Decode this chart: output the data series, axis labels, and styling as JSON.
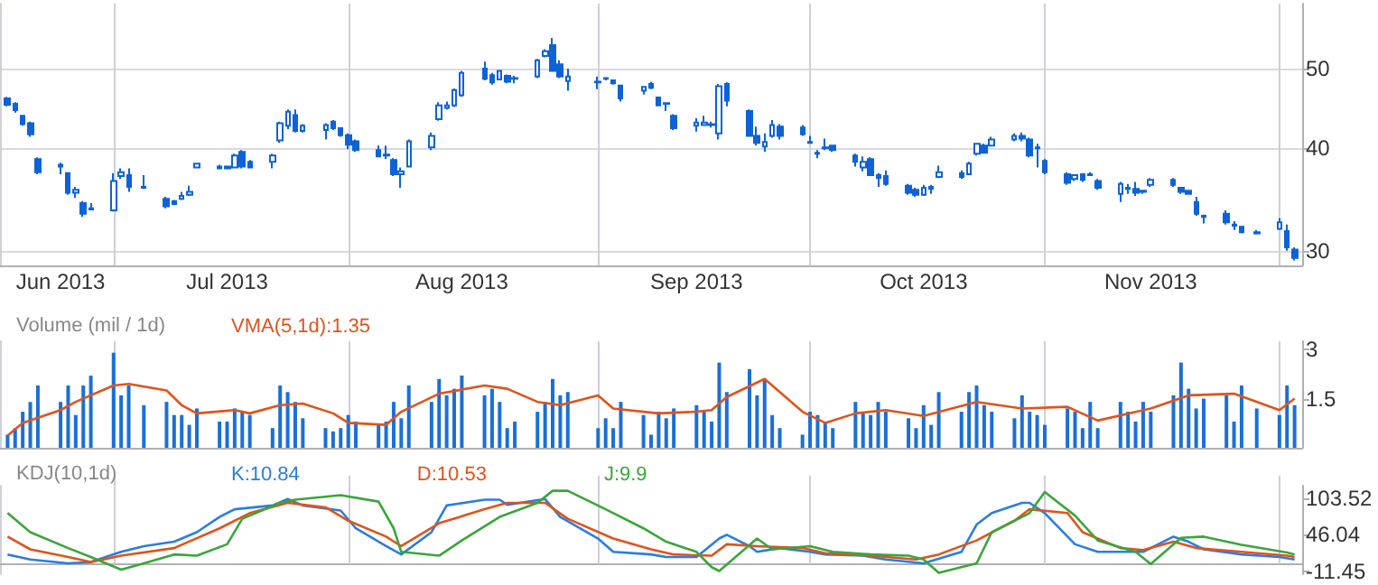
{
  "chart_data": [
    {
      "type": "candlestick",
      "color": "#0d63d6",
      "log": "y",
      "grid": true,
      "ylim": [
        28.8,
        60
      ],
      "yticks": [
        30,
        40,
        50
      ],
      "xlim": [
        "2013-06-16",
        "2013-12-05"
      ],
      "xticks": [
        {
          "value": "2013-06-24",
          "label": "Jun 2013"
        },
        {
          "value": "2013-07-01",
          "label": null
        },
        {
          "value": "2013-07-16",
          "label": "Jul 2013"
        },
        {
          "value": "2013-08-01",
          "label": null
        },
        {
          "value": "2013-08-16",
          "label": "Aug 2013"
        },
        {
          "value": "2013-09-03",
          "label": null
        },
        {
          "value": "2013-09-16",
          "label": "Sep 2013"
        },
        {
          "value": "2013-10-01",
          "label": null
        },
        {
          "value": "2013-10-16",
          "label": "Oct 2013"
        },
        {
          "value": "2013-11-01",
          "label": null
        },
        {
          "value": "2013-11-15",
          "label": "Nov 2013"
        },
        {
          "value": "2013-12-02",
          "label": null
        }
      ],
      "x": [
        "2013-06-17",
        "2013-06-18",
        "2013-06-19",
        "2013-06-20",
        "2013-06-21",
        "2013-06-24",
        "2013-06-25",
        "2013-06-26",
        "2013-06-27",
        "2013-06-28",
        "2013-07-01",
        "2013-07-02",
        "2013-07-03",
        "2013-07-05",
        "2013-07-08",
        "2013-07-09",
        "2013-07-10",
        "2013-07-11",
        "2013-07-12",
        "2013-07-15",
        "2013-07-16",
        "2013-07-17",
        "2013-07-18",
        "2013-07-19",
        "2013-07-22",
        "2013-07-23",
        "2013-07-24",
        "2013-07-25",
        "2013-07-26",
        "2013-07-29",
        "2013-07-30",
        "2013-07-31",
        "2013-08-01",
        "2013-08-02",
        "2013-08-05",
        "2013-08-06",
        "2013-08-07",
        "2013-08-08",
        "2013-08-09",
        "2013-08-12",
        "2013-08-13",
        "2013-08-14",
        "2013-08-15",
        "2013-08-16",
        "2013-08-19",
        "2013-08-20",
        "2013-08-21",
        "2013-08-22",
        "2013-08-23",
        "2013-08-26",
        "2013-08-27",
        "2013-08-28",
        "2013-08-29",
        "2013-08-30",
        "2013-09-03",
        "2013-09-04",
        "2013-09-05",
        "2013-09-06",
        "2013-09-09",
        "2013-09-10",
        "2013-09-11",
        "2013-09-12",
        "2013-09-13",
        "2013-09-16",
        "2013-09-17",
        "2013-09-18",
        "2013-09-19",
        "2013-09-20",
        "2013-09-23",
        "2013-09-24",
        "2013-09-25",
        "2013-09-26",
        "2013-09-27",
        "2013-09-30",
        "2013-10-01",
        "2013-10-02",
        "2013-10-03",
        "2013-10-04",
        "2013-10-07",
        "2013-10-08",
        "2013-10-09",
        "2013-10-10",
        "2013-10-11",
        "2013-10-14",
        "2013-10-15",
        "2013-10-16",
        "2013-10-17",
        "2013-10-18",
        "2013-10-21",
        "2013-10-22",
        "2013-10-23",
        "2013-10-24",
        "2013-10-25",
        "2013-10-28",
        "2013-10-29",
        "2013-10-30",
        "2013-10-31",
        "2013-11-01",
        "2013-11-04",
        "2013-11-05",
        "2013-11-06",
        "2013-11-07",
        "2013-11-08",
        "2013-11-11",
        "2013-11-12",
        "2013-11-13",
        "2013-11-14",
        "2013-11-15",
        "2013-11-18",
        "2013-11-19",
        "2013-11-20",
        "2013-11-21",
        "2013-11-22",
        "2013-11-25",
        "2013-11-26",
        "2013-11-27",
        "2013-11-29",
        "2013-12-02",
        "2013-12-03",
        "2013-12-04"
      ],
      "ohlc": [
        [
          46.0,
          46.2,
          45.0,
          45.2
        ],
        [
          45.3,
          45.5,
          44.2,
          44.5
        ],
        [
          43.8,
          43.9,
          42.6,
          42.8
        ],
        [
          42.9,
          43.1,
          41.3,
          41.6
        ],
        [
          38.8,
          39.0,
          37.2,
          37.4
        ],
        [
          38.2,
          38.4,
          37.2,
          38.0
        ],
        [
          37.3,
          37.4,
          35.1,
          35.3
        ],
        [
          35.3,
          35.9,
          34.8,
          35.6
        ],
        [
          34.3,
          34.5,
          33.0,
          33.3
        ],
        [
          33.7,
          34.3,
          33.6,
          33.8
        ],
        [
          33.6,
          37.3,
          33.5,
          36.5
        ],
        [
          37.0,
          37.8,
          36.7,
          37.4
        ],
        [
          37.1,
          37.8,
          35.4,
          35.9
        ],
        [
          35.9,
          37.1,
          35.7,
          35.8
        ],
        [
          34.7,
          34.9,
          33.8,
          34.0
        ],
        [
          34.5,
          34.6,
          34.1,
          34.2
        ],
        [
          34.7,
          35.4,
          34.6,
          35.0
        ],
        [
          35.1,
          36.0,
          35.0,
          35.4
        ],
        [
          37.9,
          38.4,
          37.8,
          38.3
        ],
        [
          37.8,
          38.2,
          37.7,
          38.0
        ],
        [
          38.0,
          38.1,
          37.7,
          37.8
        ],
        [
          37.9,
          39.4,
          37.8,
          39.2
        ],
        [
          39.6,
          39.8,
          37.8,
          38.0
        ],
        [
          38.5,
          38.7,
          37.8,
          37.9
        ],
        [
          38.5,
          39.4,
          37.8,
          39.2
        ],
        [
          40.9,
          43.1,
          40.6,
          42.9
        ],
        [
          42.6,
          44.6,
          42.2,
          44.3
        ],
        [
          43.9,
          44.6,
          41.8,
          42.0
        ],
        [
          42.0,
          42.8,
          41.8,
          42.6
        ],
        [
          42.1,
          42.9,
          41.0,
          42.7
        ],
        [
          43.1,
          43.3,
          42.1,
          42.3
        ],
        [
          42.3,
          42.4,
          41.3,
          41.5
        ],
        [
          41.5,
          41.7,
          39.9,
          40.4
        ],
        [
          40.8,
          41.0,
          39.6,
          39.8
        ],
        [
          39.8,
          40.3,
          39.0,
          39.1
        ],
        [
          39.3,
          40.3,
          38.8,
          39.2
        ],
        [
          38.7,
          38.9,
          37.0,
          37.2
        ],
        [
          37.2,
          37.9,
          35.8,
          37.5
        ],
        [
          38.0,
          41.0,
          37.9,
          40.8
        ],
        [
          40.1,
          41.8,
          39.8,
          41.4
        ],
        [
          43.4,
          45.5,
          43.2,
          45.1
        ],
        [
          44.8,
          45.6,
          44.6,
          45.1
        ],
        [
          45.1,
          47.3,
          44.9,
          47.1
        ],
        [
          46.4,
          49.7,
          46.2,
          49.4
        ],
        [
          50.0,
          51.0,
          48.4,
          48.6
        ],
        [
          49.1,
          49.4,
          47.8,
          48.1
        ],
        [
          48.5,
          49.8,
          48.4,
          49.7
        ],
        [
          49.0,
          49.2,
          48.0,
          48.2
        ],
        [
          48.7,
          49.0,
          48.0,
          48.6
        ],
        [
          48.9,
          51.4,
          48.7,
          51.2
        ],
        [
          51.8,
          52.8,
          51.6,
          52.5
        ],
        [
          53.4,
          54.5,
          49.6,
          49.7
        ],
        [
          50.6,
          51.2,
          48.7,
          48.9
        ],
        [
          48.3,
          50.0,
          47.0,
          48.9
        ],
        [
          48.2,
          48.9,
          47.2,
          48.1
        ],
        [
          48.7,
          48.8,
          48.4,
          48.6
        ],
        [
          48.4,
          48.5,
          47.8,
          48.0
        ],
        [
          47.7,
          47.8,
          45.6,
          46.0
        ],
        [
          47.0,
          47.6,
          46.5,
          47.5
        ],
        [
          47.9,
          48.2,
          47.2,
          47.4
        ],
        [
          46.1,
          46.2,
          45.0,
          45.1
        ],
        [
          45.4,
          45.5,
          44.4,
          45.3
        ],
        [
          43.8,
          44.0,
          42.1,
          42.3
        ],
        [
          42.6,
          43.5,
          41.9,
          43.0
        ],
        [
          42.7,
          43.8,
          42.6,
          43.0
        ],
        [
          42.8,
          43.1,
          42.4,
          42.7
        ],
        [
          41.7,
          47.9,
          41.0,
          47.6
        ],
        [
          47.9,
          48.1,
          45.0,
          45.7
        ],
        [
          44.4,
          44.6,
          41.3,
          41.4
        ],
        [
          41.4,
          42.5,
          40.3,
          40.6
        ],
        [
          40.2,
          41.7,
          39.6,
          40.7
        ],
        [
          41.4,
          43.3,
          41.2,
          42.7
        ],
        [
          42.5,
          42.8,
          41.0,
          41.4
        ],
        [
          42.4,
          42.7,
          41.4,
          41.6
        ],
        [
          40.7,
          41.4,
          40.5,
          40.6
        ],
        [
          39.5,
          39.8,
          38.9,
          39.4
        ],
        [
          40.0,
          41.1,
          39.8,
          40.1
        ],
        [
          40.3,
          40.4,
          39.6,
          39.8
        ],
        [
          39.2,
          39.4,
          38.0,
          38.5
        ],
        [
          37.9,
          39.1,
          37.5,
          38.5
        ],
        [
          38.8,
          39.0,
          37.0,
          37.1
        ],
        [
          37.1,
          37.3,
          35.9,
          36.8
        ],
        [
          37.0,
          37.6,
          36.0,
          36.2
        ],
        [
          36.0,
          36.2,
          35.1,
          35.3
        ],
        [
          35.6,
          35.8,
          34.9,
          35.1
        ],
        [
          35.1,
          36.1,
          35.0,
          35.8
        ],
        [
          35.9,
          36.1,
          35.2,
          35.7
        ],
        [
          36.9,
          38.1,
          36.8,
          37.4
        ],
        [
          37.3,
          37.6,
          36.7,
          36.9
        ],
        [
          37.2,
          38.5,
          37.1,
          38.3
        ],
        [
          39.4,
          40.6,
          39.2,
          40.5
        ],
        [
          40.3,
          40.5,
          39.4,
          39.5
        ],
        [
          40.3,
          41.3,
          40.2,
          41.0
        ],
        [
          41.0,
          41.7,
          40.8,
          41.4
        ],
        [
          41.4,
          41.8,
          40.8,
          41.1
        ],
        [
          41.0,
          41.2,
          39.0,
          39.2
        ],
        [
          40.1,
          40.5,
          37.9,
          40.0
        ],
        [
          38.6,
          38.8,
          37.2,
          37.4
        ],
        [
          37.2,
          37.4,
          36.1,
          36.3
        ],
        [
          36.7,
          37.2,
          36.5,
          37.1
        ],
        [
          37.2,
          37.3,
          36.4,
          36.6
        ],
        [
          37.2,
          37.4,
          37.0,
          37.1
        ],
        [
          36.5,
          36.7,
          35.6,
          35.8
        ],
        [
          35.2,
          36.4,
          34.4,
          36.2
        ],
        [
          35.8,
          36.2,
          35.2,
          35.7
        ],
        [
          35.7,
          36.4,
          35.0,
          35.3
        ],
        [
          35.5,
          35.6,
          35.2,
          35.4
        ],
        [
          36.1,
          36.8,
          35.9,
          36.6
        ],
        [
          36.6,
          36.8,
          35.9,
          36.1
        ],
        [
          35.8,
          35.9,
          35.2,
          35.4
        ],
        [
          35.5,
          35.6,
          35.1,
          35.2
        ],
        [
          34.4,
          34.9,
          33.1,
          33.3
        ],
        [
          33.1,
          33.2,
          32.4,
          33.0
        ],
        [
          33.3,
          33.6,
          32.3,
          32.5
        ],
        [
          32.3,
          32.6,
          31.8,
          32.2
        ],
        [
          32.1,
          32.2,
          31.5,
          31.6
        ],
        [
          31.6,
          31.8,
          31.4,
          31.5
        ],
        [
          31.9,
          32.9,
          31.8,
          32.5
        ],
        [
          31.7,
          32.3,
          30.0,
          30.3
        ],
        [
          30.1,
          30.3,
          29.2,
          29.4
        ]
      ]
    },
    {
      "type": "bar",
      "title": "Volume (mil / 1d)",
      "legend": "top left",
      "marker": "none",
      "grid": "x",
      "tick_labels": "y",
      "ylim": [
        0,
        3.25
      ],
      "yticks": [
        1.5,
        3
      ],
      "xlim": [
        "2013-06-16",
        "2013-12-05"
      ],
      "xticks": [
        {
          "value": "2013-07-01",
          "label": null
        },
        {
          "value": "2013-08-01",
          "label": null
        },
        {
          "value": "2013-09-03",
          "label": null
        },
        {
          "value": "2013-10-01",
          "label": null
        },
        {
          "value": "2013-11-01",
          "label": null
        },
        {
          "value": "2013-12-02",
          "label": null
        }
      ],
      "x": [
        "2013-06-17",
        "2013-06-18",
        "2013-06-19",
        "2013-06-20",
        "2013-06-21",
        "2013-06-24",
        "2013-06-25",
        "2013-06-26",
        "2013-06-27",
        "2013-06-28",
        "2013-07-01",
        "2013-07-02",
        "2013-07-03",
        "2013-07-05",
        "2013-07-08",
        "2013-07-09",
        "2013-07-10",
        "2013-07-11",
        "2013-07-12",
        "2013-07-15",
        "2013-07-16",
        "2013-07-17",
        "2013-07-18",
        "2013-07-19",
        "2013-07-22",
        "2013-07-23",
        "2013-07-24",
        "2013-07-25",
        "2013-07-26",
        "2013-07-29",
        "2013-07-30",
        "2013-07-31",
        "2013-08-01",
        "2013-08-02",
        "2013-08-05",
        "2013-08-06",
        "2013-08-07",
        "2013-08-08",
        "2013-08-09",
        "2013-08-12",
        "2013-08-13",
        "2013-08-14",
        "2013-08-15",
        "2013-08-16",
        "2013-08-19",
        "2013-08-20",
        "2013-08-21",
        "2013-08-22",
        "2013-08-23",
        "2013-08-26",
        "2013-08-27",
        "2013-08-28",
        "2013-08-29",
        "2013-08-30",
        "2013-09-03",
        "2013-09-04",
        "2013-09-05",
        "2013-09-06",
        "2013-09-09",
        "2013-09-10",
        "2013-09-11",
        "2013-09-12",
        "2013-09-13",
        "2013-09-16",
        "2013-09-17",
        "2013-09-18",
        "2013-09-19",
        "2013-09-20",
        "2013-09-23",
        "2013-09-24",
        "2013-09-25",
        "2013-09-26",
        "2013-09-27",
        "2013-09-30",
        "2013-10-01",
        "2013-10-02",
        "2013-10-03",
        "2013-10-04",
        "2013-10-07",
        "2013-10-08",
        "2013-10-09",
        "2013-10-10",
        "2013-10-11",
        "2013-10-14",
        "2013-10-15",
        "2013-10-16",
        "2013-10-17",
        "2013-10-18",
        "2013-10-21",
        "2013-10-22",
        "2013-10-23",
        "2013-10-24",
        "2013-10-25",
        "2013-10-28",
        "2013-10-29",
        "2013-10-30",
        "2013-10-31",
        "2013-11-01",
        "2013-11-04",
        "2013-11-05",
        "2013-11-06",
        "2013-11-07",
        "2013-11-08",
        "2013-11-11",
        "2013-11-12",
        "2013-11-13",
        "2013-11-14",
        "2013-11-15",
        "2013-11-18",
        "2013-11-19",
        "2013-11-20",
        "2013-11-21",
        "2013-11-22",
        "2013-11-25",
        "2013-11-26",
        "2013-11-27",
        "2013-11-29",
        "2013-12-02",
        "2013-12-03",
        "2013-12-04"
      ],
      "series": [
        {
          "color": "#1a6fd9",
          "values": [
            0.4,
            0.6,
            1.1,
            1.4,
            1.9,
            1.4,
            1.9,
            1.0,
            1.9,
            2.2,
            2.9,
            1.6,
            1.9,
            1.3,
            1.4,
            1.0,
            1.0,
            0.7,
            1.2,
            0.8,
            0.8,
            1.2,
            1.1,
            1.0,
            0.6,
            1.9,
            1.7,
            1.4,
            0.9,
            0.6,
            0.5,
            0.6,
            1.0,
            0.8,
            0.7,
            0.8,
            1.4,
            0.9,
            1.9,
            1.4,
            2.1,
            1.6,
            1.8,
            2.2,
            1.6,
            1.8,
            1.4,
            0.6,
            0.8,
            1.1,
            1.4,
            2.1,
            1.6,
            1.7,
            0.6,
            0.9,
            0.6,
            1.4,
            1.0,
            0.4,
            1.1,
            0.9,
            1.2,
            1.3,
            1.1,
            0.8,
            2.6,
            1.7,
            2.4,
            1.6,
            2.1,
            1.0,
            0.6,
            0.4,
            1.1,
            1.0,
            0.8,
            0.6,
            1.4,
            1.1,
            1.0,
            1.4,
            1.1,
            0.9,
            0.6,
            1.3,
            0.7,
            1.7,
            1.1,
            1.7,
            1.9,
            1.3,
            1.1,
            0.9,
            1.6,
            1.1,
            1.0,
            0.7,
            1.2,
            1.1,
            0.6,
            1.4,
            0.6,
            1.4,
            1.1,
            0.8,
            1.4,
            1.1,
            1.6,
            2.6,
            1.8,
            1.2,
            1.5,
            1.6,
            0.8,
            1.9,
            1.2,
            1.0,
            1.9,
            1.3
          ]
        },
        {
          "type": "line",
          "name": "VMA(5,1d):1.35",
          "color": "#e0531c",
          "x": [
            "2013-06-17",
            "2013-06-19",
            "2013-06-24",
            "2013-06-26",
            "2013-07-01",
            "2013-07-03",
            "2013-07-08",
            "2013-07-10",
            "2013-07-12",
            "2013-07-17",
            "2013-07-19",
            "2013-07-23",
            "2013-07-26",
            "2013-07-30",
            "2013-08-01",
            "2013-08-06",
            "2013-08-08",
            "2013-08-13",
            "2013-08-19",
            "2013-08-22",
            "2013-08-26",
            "2013-08-29",
            "2013-09-03",
            "2013-09-05",
            "2013-09-11",
            "2013-09-16",
            "2013-09-18",
            "2013-09-20",
            "2013-09-25",
            "2013-09-30",
            "2013-10-03",
            "2013-10-07",
            "2013-10-11",
            "2013-10-16",
            "2013-10-23",
            "2013-10-29",
            "2013-11-04",
            "2013-11-08",
            "2013-11-15",
            "2013-11-20",
            "2013-11-26",
            "2013-12-02",
            "2013-12-04"
          ],
          "values": [
            0.37,
            0.76,
            1.15,
            1.4,
            1.9,
            1.95,
            1.75,
            1.3,
            1.05,
            1.15,
            1.05,
            1.3,
            1.35,
            1.05,
            0.76,
            0.7,
            1.1,
            1.65,
            1.9,
            1.8,
            1.4,
            1.3,
            1.6,
            1.2,
            1.05,
            1.1,
            1.15,
            1.55,
            2.1,
            1.1,
            0.76,
            1.05,
            1.15,
            0.97,
            1.4,
            1.2,
            1.25,
            0.83,
            1.2,
            1.6,
            1.65,
            1.15,
            1.5
          ]
        }
      ]
    },
    {
      "type": "line",
      "title": "KDJ(10,1d)",
      "legend": "top left",
      "marker": "none",
      "grid": "x",
      "tick_labels": "y",
      "ylim": [
        -16,
        123
      ],
      "yticks": [
        -11.45,
        46.04,
        103.52
      ],
      "xlim": [
        "2013-06-16",
        "2013-12-05"
      ],
      "xticks": [
        {
          "value": "2013-07-01",
          "label": null
        },
        {
          "value": "2013-08-01",
          "label": null
        },
        {
          "value": "2013-09-03",
          "label": null
        },
        {
          "value": "2013-10-01",
          "label": null
        },
        {
          "value": "2013-11-01",
          "label": null
        },
        {
          "value": "2013-12-02",
          "label": null
        }
      ],
      "series": [
        {
          "name": "K:10.84",
          "color": "#2a7de1",
          "x": [
            "2013-06-17",
            "2013-06-20",
            "2013-06-25",
            "2013-06-28",
            "2013-07-02",
            "2013-07-05",
            "2013-07-09",
            "2013-07-12",
            "2013-07-15",
            "2013-07-17",
            "2013-07-22",
            "2013-07-24",
            "2013-07-26",
            "2013-07-31",
            "2013-08-02",
            "2013-08-06",
            "2013-08-08",
            "2013-08-12",
            "2013-08-14",
            "2013-08-19",
            "2013-08-21",
            "2013-08-22",
            "2013-08-27",
            "2013-08-29",
            "2013-09-03",
            "2013-09-05",
            "2013-09-10",
            "2013-09-12",
            "2013-09-16",
            "2013-09-19",
            "2013-09-20",
            "2013-09-23",
            "2013-09-24",
            "2013-09-27",
            "2013-10-01",
            "2013-10-03",
            "2013-10-08",
            "2013-10-11",
            "2013-10-16",
            "2013-10-21",
            "2013-10-23",
            "2013-10-25",
            "2013-10-29",
            "2013-10-30",
            "2013-11-01",
            "2013-11-05",
            "2013-11-08",
            "2013-11-12",
            "2013-11-14",
            "2013-11-18",
            "2013-11-20",
            "2013-11-22",
            "2013-11-27",
            "2013-12-02",
            "2013-12-04"
          ],
          "values": [
            15,
            7,
            1,
            3,
            19,
            28,
            35,
            50,
            74,
            86,
            92,
            102,
            92,
            84,
            56,
            28,
            15,
            50,
            92,
            101,
            101,
            93,
            102,
            74,
            40,
            19,
            15,
            11,
            11,
            40,
            46,
            28,
            19,
            25,
            19,
            15,
            13,
            7,
            1,
            19,
            62,
            80,
            96,
            96,
            80,
            31,
            19,
            19,
            19,
            43,
            35,
            23,
            15,
            11,
            7
          ]
        },
        {
          "name": "D:10.53",
          "color": "#e0531c",
          "x": [
            "2013-06-17",
            "2013-06-20",
            "2013-06-25",
            "2013-06-28",
            "2013-07-02",
            "2013-07-09",
            "2013-07-15",
            "2013-07-19",
            "2013-07-24",
            "2013-07-29",
            "2013-08-01",
            "2013-08-06",
            "2013-08-08",
            "2013-08-13",
            "2013-08-19",
            "2013-08-22",
            "2013-08-27",
            "2013-08-30",
            "2013-09-05",
            "2013-09-10",
            "2013-09-13",
            "2013-09-18",
            "2013-09-20",
            "2013-09-24",
            "2013-09-30",
            "2013-10-03",
            "2013-10-09",
            "2013-10-15",
            "2013-10-18",
            "2013-10-23",
            "2013-10-28",
            "2013-10-30",
            "2013-11-04",
            "2013-11-06",
            "2013-11-11",
            "2013-11-14",
            "2013-11-18",
            "2013-11-21",
            "2013-11-27",
            "2013-12-03",
            "2013-12-04"
          ],
          "values": [
            43,
            23,
            11,
            3,
            13,
            25,
            56,
            80,
            96,
            89,
            68,
            43,
            28,
            64,
            86,
            96,
            96,
            71,
            40,
            23,
            15,
            13,
            31,
            28,
            25,
            17,
            13,
            7,
            15,
            37,
            68,
            86,
            80,
            50,
            25,
            22,
            35,
            25,
            19,
            13,
            11
          ]
        },
        {
          "name": "J:9.9",
          "color": "#3ba53b",
          "x": [
            "2013-06-17",
            "2013-06-20",
            "2013-06-25",
            "2013-06-28",
            "2013-07-02",
            "2013-07-05",
            "2013-07-09",
            "2013-07-12",
            "2013-07-16",
            "2013-07-18",
            "2013-07-23",
            "2013-07-25",
            "2013-07-31",
            "2013-08-05",
            "2013-08-07",
            "2013-08-08",
            "2013-08-13",
            "2013-08-16",
            "2013-08-21",
            "2013-08-26",
            "2013-08-28",
            "2013-08-30",
            "2013-09-04",
            "2013-09-09",
            "2013-09-12",
            "2013-09-16",
            "2013-09-18",
            "2013-09-19",
            "2013-09-24",
            "2013-09-26",
            "2013-10-01",
            "2013-10-04",
            "2013-10-09",
            "2013-10-14",
            "2013-10-16",
            "2013-10-18",
            "2013-10-23",
            "2013-10-25",
            "2013-10-30",
            "2013-11-01",
            "2013-11-05",
            "2013-11-08",
            "2013-11-13",
            "2013-11-15",
            "2013-11-19",
            "2013-11-22",
            "2013-11-27",
            "2013-12-03",
            "2013-12-04"
          ],
          "values": [
            80,
            50,
            25,
            11,
            -9,
            1,
            15,
            13,
            31,
            71,
            96,
            101,
            108,
            98,
            56,
            19,
            13,
            37,
            74,
            96,
            115,
            115,
            86,
            56,
            35,
            19,
            -5,
            -11,
            40,
            23,
            28,
            19,
            15,
            13,
            7,
            -14,
            1,
            50,
            80,
            113,
            76,
            37,
            19,
            0,
            41,
            43,
            30,
            18,
            15
          ]
        }
      ]
    }
  ]
}
